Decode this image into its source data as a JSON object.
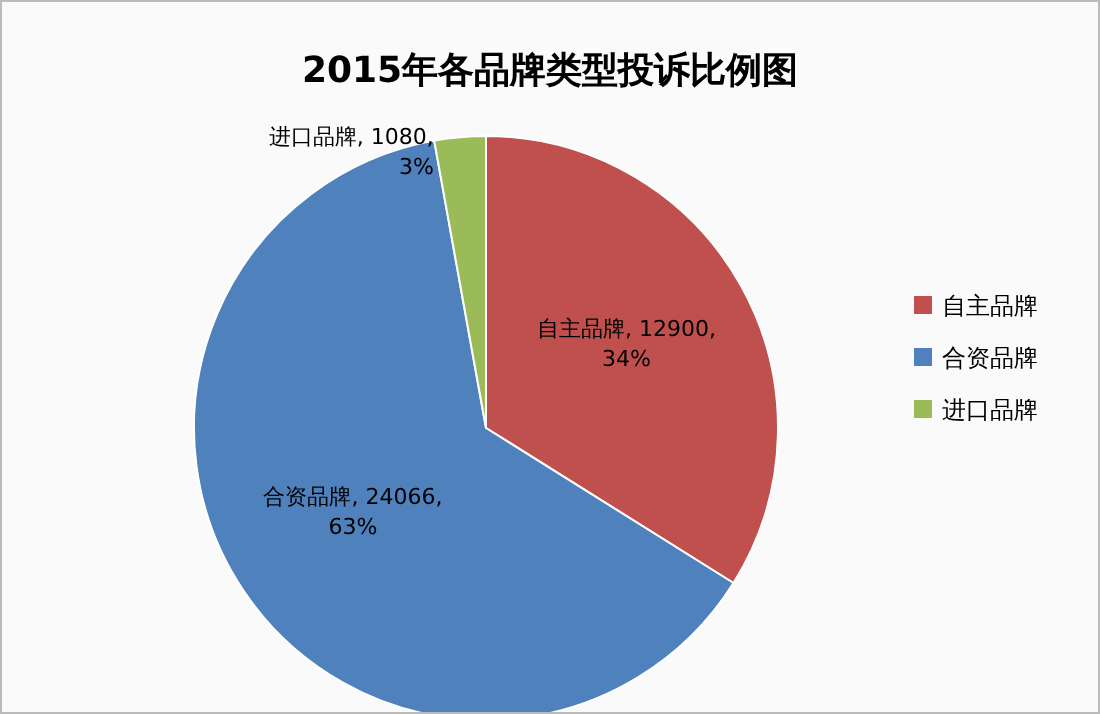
{
  "chart_data": {
    "type": "pie",
    "title": "2015年各品牌类型投诉比例图",
    "categories": [
      "自主品牌",
      "合资品牌",
      "进口品牌"
    ],
    "values": [
      12900,
      24066,
      1080
    ],
    "colors": [
      "#c0504d",
      "#4f81bd",
      "#9bbb59"
    ],
    "value_labels": [
      "自主品牌, 12900, 34%",
      "合资品牌, 24066, 63%",
      "进口品牌, 1080, 3%"
    ],
    "legend": "right"
  }
}
